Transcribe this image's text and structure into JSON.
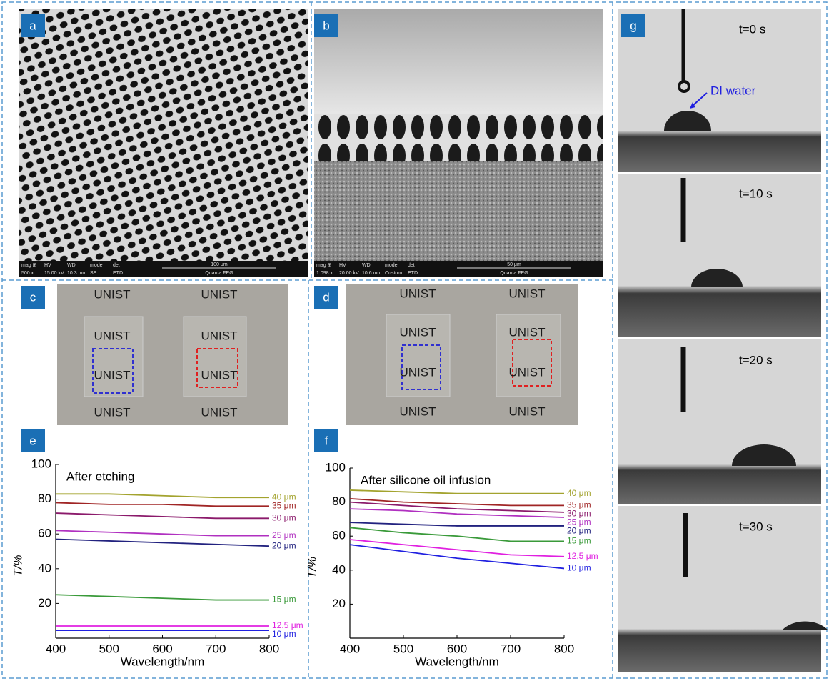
{
  "panels": {
    "a": {
      "label": "a",
      "sem_fields": [
        "mag ⊞",
        "HV",
        "WD",
        "mode",
        "det"
      ],
      "sem_values": [
        "500 x",
        "15.00 kV",
        "10.3 mm",
        "SE",
        "ETD"
      ],
      "scale": "100 μm",
      "instrument": "Quanta FEG"
    },
    "b": {
      "label": "b",
      "sem_fields": [
        "mag ⊞",
        "HV",
        "WD",
        "mode",
        "det"
      ],
      "sem_values": [
        "1 098 x",
        "20.00 kV",
        "10.6 mm",
        "Custom",
        "ETD"
      ],
      "scale": "50 μm",
      "instrument": "Quanta FEG"
    },
    "c": {
      "label": "c",
      "texts": [
        "UNIST",
        "UNIST",
        "UNIST",
        "UNIST",
        "UNIST",
        "UNIST",
        "UNIST",
        "UNIST"
      ]
    },
    "d": {
      "label": "d",
      "texts": [
        "UNIST",
        "UNIST",
        "UNIST",
        "UNIST",
        "UNIST",
        "UNIST",
        "UNIST",
        "UNIST"
      ]
    },
    "e": {
      "label": "e"
    },
    "f": {
      "label": "f"
    },
    "g": {
      "label": "g",
      "annotation": "DI water",
      "frames": [
        "t=0 s",
        "t=10 s",
        "t=20 s",
        "t=30 s"
      ]
    }
  },
  "chart_data": [
    {
      "type": "line",
      "title": "After etching",
      "xlabel": "Wavelength/nm",
      "ylabel": "T/%",
      "x": [
        400,
        500,
        600,
        700,
        800
      ],
      "xlim": [
        400,
        800
      ],
      "xticks": [
        400,
        500,
        600,
        700,
        800
      ],
      "ylim": [
        0,
        100
      ],
      "yticks": [
        20,
        40,
        60,
        80,
        100
      ],
      "series": [
        {
          "name": "40 μm",
          "color": "#a3a32e",
          "values": [
            83,
            83,
            82,
            81,
            81
          ]
        },
        {
          "name": "35 μm",
          "color": "#a02525",
          "values": [
            78,
            77,
            77,
            76,
            76
          ]
        },
        {
          "name": "30 μm",
          "color": "#8b1a6b",
          "values": [
            72,
            71,
            70,
            69,
            69
          ]
        },
        {
          "name": "25 μm",
          "color": "#b030c0",
          "values": [
            62,
            61,
            60,
            59,
            59
          ]
        },
        {
          "name": "20 μm",
          "color": "#22227f",
          "values": [
            57,
            56,
            55,
            54,
            53
          ]
        },
        {
          "name": "15 μm",
          "color": "#3a9a3a",
          "values": [
            25,
            24,
            23,
            22,
            22
          ]
        },
        {
          "name": "12.5 μm",
          "color": "#e020e0",
          "values": [
            7,
            7,
            7,
            7,
            7
          ]
        },
        {
          "name": "10 μm",
          "color": "#2020e0",
          "values": [
            4.5,
            4.5,
            4.5,
            4.5,
            4.5
          ]
        }
      ]
    },
    {
      "type": "line",
      "title": "After silicone oil infusion",
      "xlabel": "Wavelength/nm",
      "ylabel": "T/%",
      "x": [
        400,
        500,
        600,
        700,
        800
      ],
      "xlim": [
        400,
        800
      ],
      "xticks": [
        400,
        500,
        600,
        700,
        800
      ],
      "ylim": [
        0,
        100
      ],
      "yticks": [
        20,
        40,
        60,
        80,
        100
      ],
      "series": [
        {
          "name": "40 μm",
          "color": "#a3a32e",
          "values": [
            87,
            86,
            85,
            85,
            85
          ]
        },
        {
          "name": "35 μm",
          "color": "#a02525",
          "values": [
            82,
            80,
            79,
            78,
            78
          ]
        },
        {
          "name": "30 μm",
          "color": "#8b1a6b",
          "values": [
            80,
            78,
            76,
            75,
            74
          ]
        },
        {
          "name": "25 μm",
          "color": "#b030c0",
          "values": [
            76,
            75,
            73,
            72,
            71
          ]
        },
        {
          "name": "20 μm",
          "color": "#22227f",
          "values": [
            68,
            67,
            66,
            66,
            66
          ]
        },
        {
          "name": "15 μm",
          "color": "#3a9a3a",
          "values": [
            65,
            62,
            60,
            57,
            57
          ]
        },
        {
          "name": "12.5 μm",
          "color": "#e020e0",
          "values": [
            58,
            55,
            52,
            49,
            48
          ]
        },
        {
          "name": "10 μm",
          "color": "#2020e0",
          "values": [
            55,
            51,
            47,
            44,
            41
          ]
        }
      ]
    }
  ]
}
